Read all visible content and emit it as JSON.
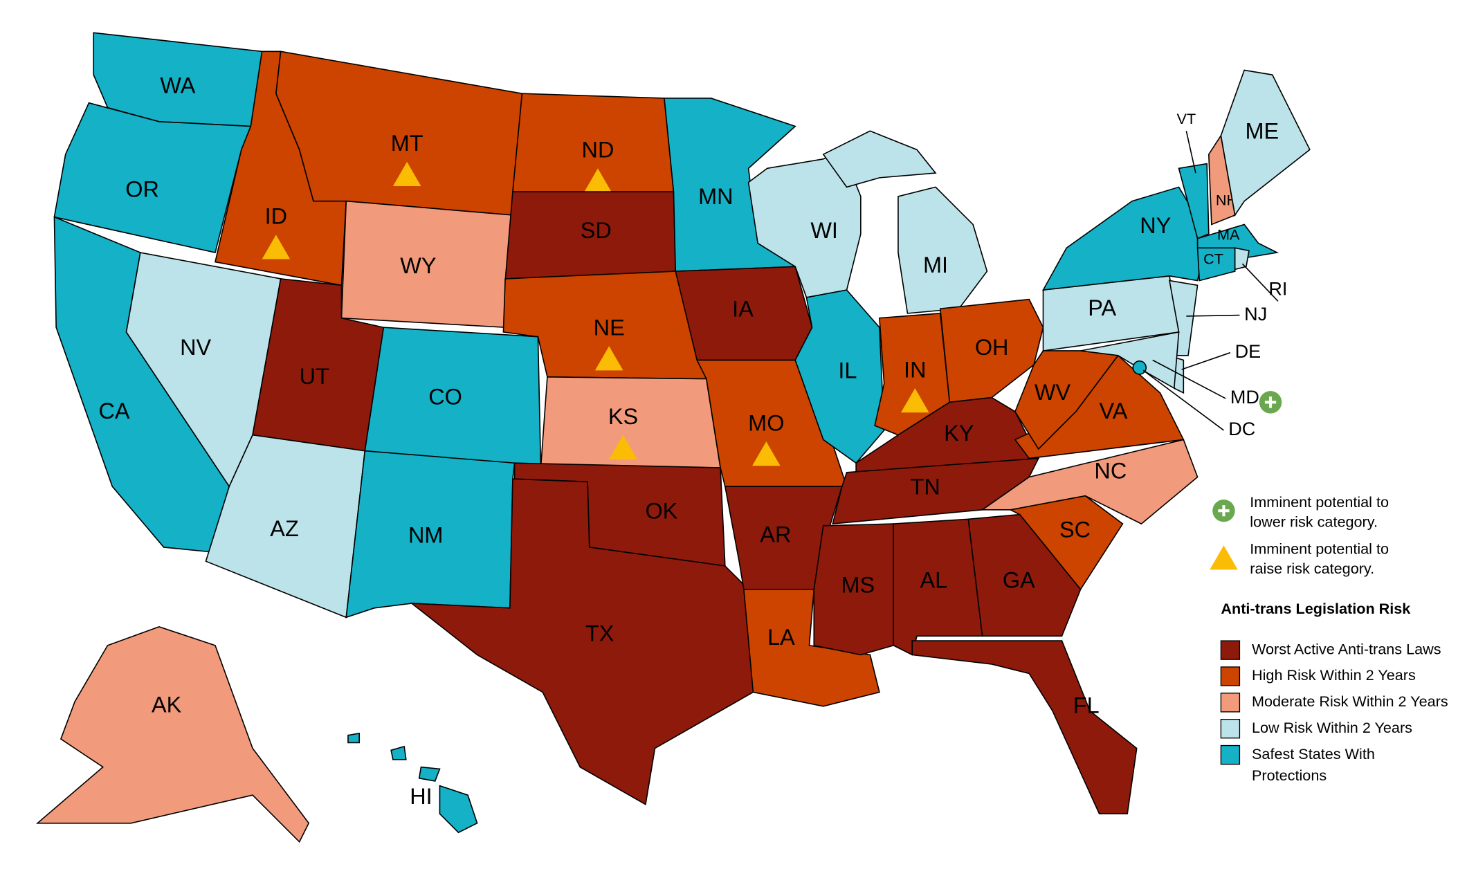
{
  "states": [
    {
      "label": "WA",
      "color": "#14b1c7"
    },
    {
      "label": "OR",
      "color": "#14b1c7"
    },
    {
      "label": "CA",
      "color": "#14b1c7"
    },
    {
      "label": "ID",
      "color": "#cc4400",
      "raise": true
    },
    {
      "label": "NV",
      "color": "#bde3ea"
    },
    {
      "label": "MT",
      "color": "#cc4400",
      "raise": true
    },
    {
      "label": "WY",
      "color": "#f29b7c"
    },
    {
      "label": "UT",
      "color": "#8e1a0c"
    },
    {
      "label": "AZ",
      "color": "#bde3ea"
    },
    {
      "label": "ND",
      "color": "#cc4400",
      "raise": true
    },
    {
      "label": "SD",
      "color": "#8e1a0c"
    },
    {
      "label": "NE",
      "color": "#cc4400",
      "raise": true
    },
    {
      "label": "CO",
      "color": "#14b1c7"
    },
    {
      "label": "NM",
      "color": "#14b1c7"
    },
    {
      "label": "KS",
      "color": "#f29b7c",
      "raise": true
    },
    {
      "label": "OK",
      "color": "#8e1a0c"
    },
    {
      "label": "TX",
      "color": "#8e1a0c"
    },
    {
      "label": "MN",
      "color": "#14b1c7"
    },
    {
      "label": "IA",
      "color": "#8e1a0c"
    },
    {
      "label": "MO",
      "color": "#cc4400",
      "raise": true
    },
    {
      "label": "AR",
      "color": "#8e1a0c"
    },
    {
      "label": "LA",
      "color": "#cc4400"
    },
    {
      "label": "WI",
      "color": "#bde3ea"
    },
    {
      "label": "IL",
      "color": "#14b1c7"
    },
    {
      "label": "MI",
      "color": "#bde3ea"
    },
    {
      "label": "IN",
      "color": "#cc4400",
      "raise": true
    },
    {
      "label": "OH",
      "color": "#cc4400"
    },
    {
      "label": "KY",
      "color": "#8e1a0c"
    },
    {
      "label": "TN",
      "color": "#8e1a0c"
    },
    {
      "label": "MS",
      "color": "#8e1a0c"
    },
    {
      "label": "AL",
      "color": "#8e1a0c"
    },
    {
      "label": "GA",
      "color": "#8e1a0c"
    },
    {
      "label": "FL",
      "color": "#8e1a0c"
    },
    {
      "label": "SC",
      "color": "#cc4400"
    },
    {
      "label": "NC",
      "color": "#f29b7c"
    },
    {
      "label": "VA",
      "color": "#cc4400"
    },
    {
      "label": "WV",
      "color": "#cc4400"
    },
    {
      "label": "PA",
      "color": "#bde3ea"
    },
    {
      "label": "NY",
      "color": "#14b1c7"
    },
    {
      "label": "NJ",
      "color": "#bde3ea"
    },
    {
      "label": "DE",
      "color": "#bde3ea"
    },
    {
      "label": "MD",
      "color": "#bde3ea",
      "lower": true
    },
    {
      "label": "DC",
      "color": "#14b1c7"
    },
    {
      "label": "VT",
      "color": "#14b1c7"
    },
    {
      "label": "NH",
      "color": "#f29b7c"
    },
    {
      "label": "ME",
      "color": "#bde3ea"
    },
    {
      "label": "MA",
      "color": "#14b1c7"
    },
    {
      "label": "CT",
      "color": "#14b1c7"
    },
    {
      "label": "RI",
      "color": "#bde3ea"
    },
    {
      "label": "AK",
      "color": "#f29b7c"
    },
    {
      "label": "HI",
      "color": "#14b1c7"
    }
  ],
  "markers": {
    "lower": {
      "lines": [
        "Imminent potential to",
        "lower risk category."
      ],
      "color": "#6aa84f"
    },
    "raise": {
      "lines": [
        "Imminent potential to",
        "raise risk category."
      ],
      "color": "#fbbc05"
    }
  },
  "legend": {
    "title": "Anti-trans Legislation Risk",
    "items": [
      {
        "lines": [
          "Worst Active Anti-trans Laws"
        ],
        "color": "#8e1a0c"
      },
      {
        "lines": [
          "High Risk Within 2 Years"
        ],
        "color": "#cc4400"
      },
      {
        "lines": [
          "Moderate Risk Within 2 Years"
        ],
        "color": "#f29b7c"
      },
      {
        "lines": [
          "Low Risk Within 2 Years"
        ],
        "color": "#bde3ea"
      },
      {
        "lines": [
          "Safest States With",
          "Protections"
        ],
        "color": "#14b1c7"
      }
    ]
  }
}
